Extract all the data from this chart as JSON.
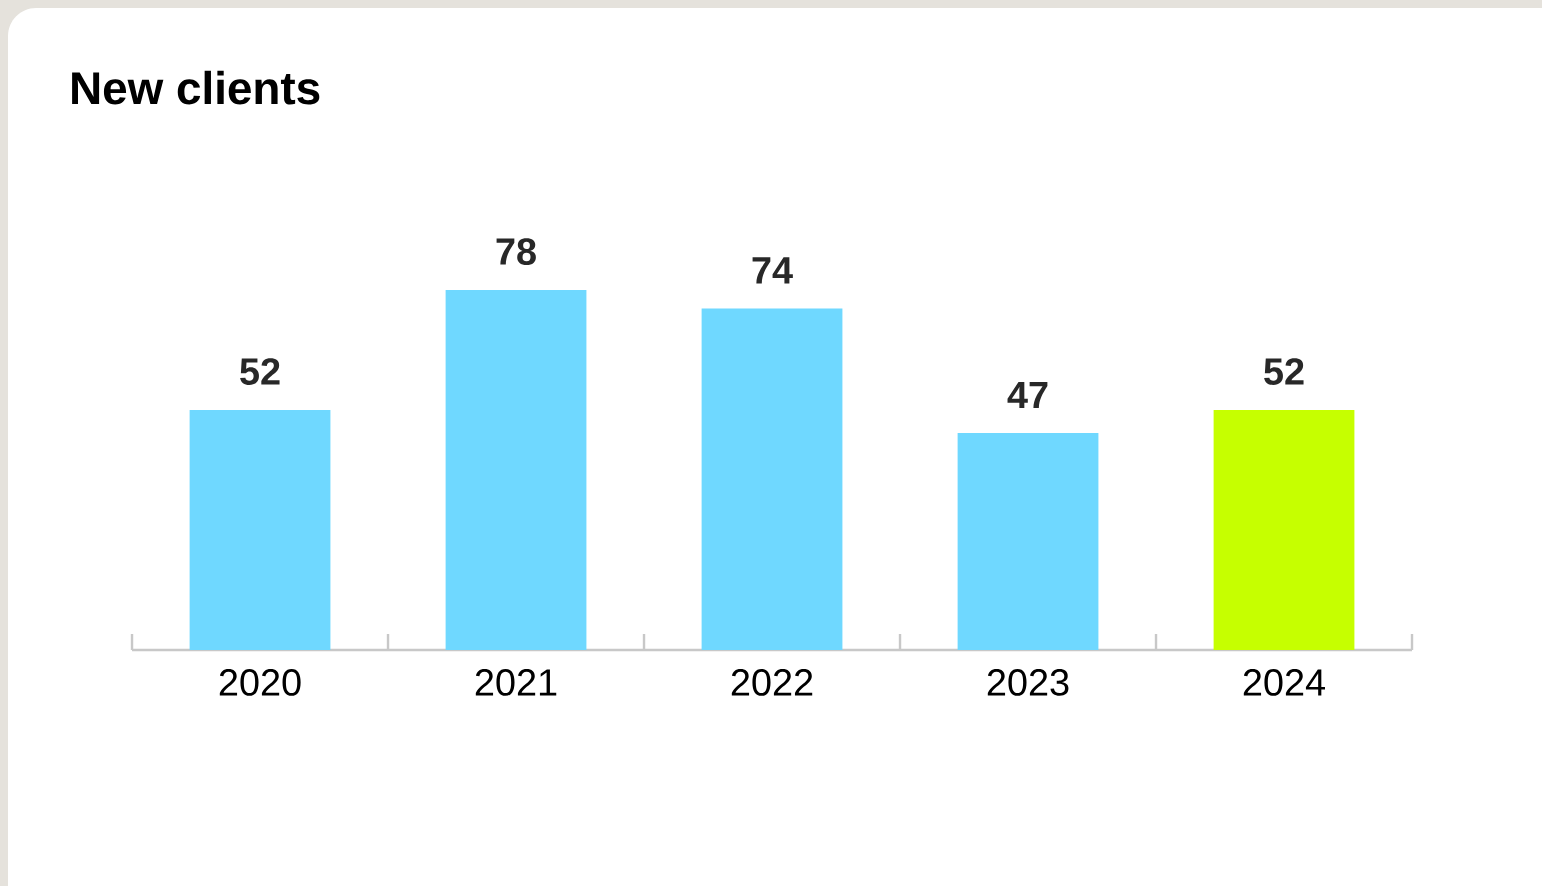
{
  "chart_data": {
    "type": "bar",
    "title": "New clients",
    "categories": [
      "2020",
      "2021",
      "2022",
      "2023",
      "2024"
    ],
    "values": [
      52,
      78,
      74,
      47,
      52
    ],
    "colors": [
      "#6fd8ff",
      "#6fd8ff",
      "#6fd8ff",
      "#6fd8ff",
      "#c6ff00"
    ],
    "data_labels": true
  }
}
